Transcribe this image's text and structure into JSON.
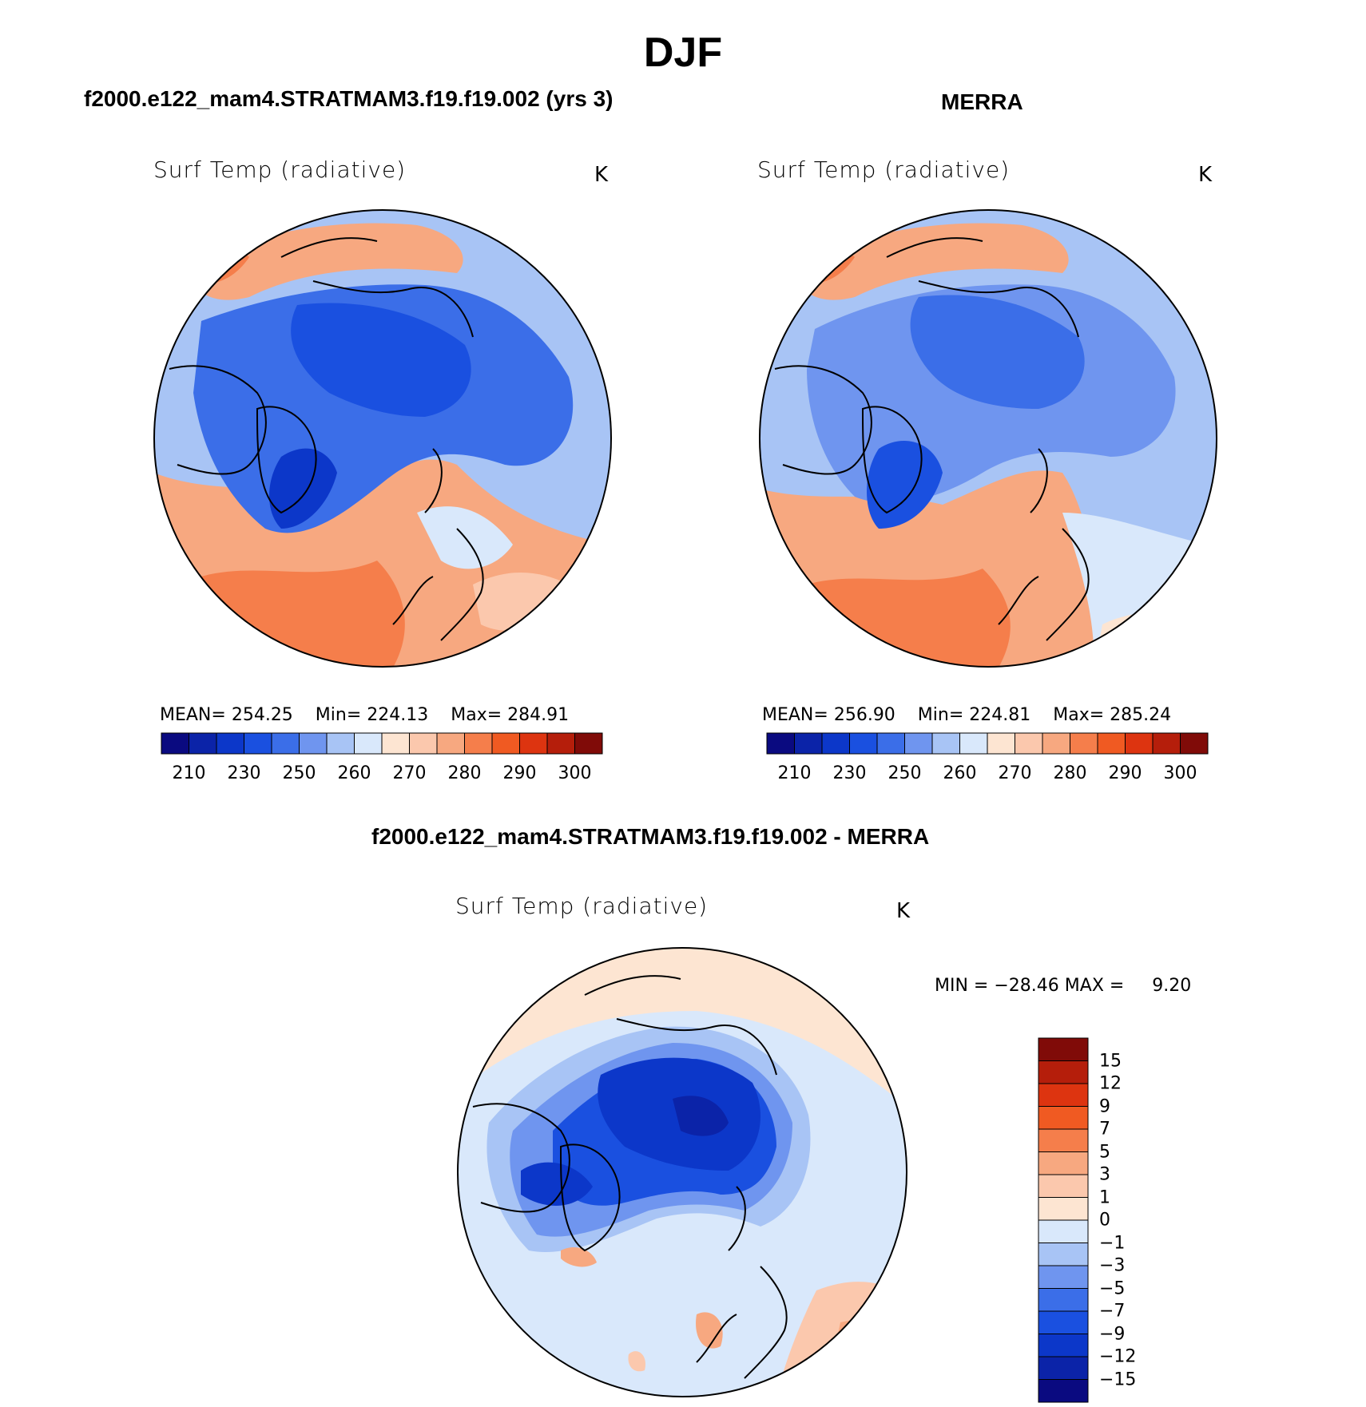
{
  "title": "DJF",
  "panels": [
    {
      "case": "f2000.e122_mam4.STRATMAM3.f19.f19.002 (yrs 3)",
      "variable": "Surf Temp (radiative)",
      "units": "K",
      "stats": {
        "mean_label": "MEAN=",
        "mean": "254.25",
        "min_label": "Min=",
        "min": "224.13",
        "max_label": "Max=",
        "max": "284.91"
      }
    },
    {
      "case": "MERRA",
      "variable": "Surf Temp (radiative)",
      "units": "K",
      "stats": {
        "mean_label": "MEAN=",
        "mean": "256.90",
        "min_label": "Min=",
        "min": "224.81",
        "max_label": "Max=",
        "max": "285.24"
      }
    }
  ],
  "temp_colorbar": {
    "colors": [
      "#0a0a80",
      "#0b23a8",
      "#0c37c9",
      "#1a50e0",
      "#3b6ee8",
      "#6f95ef",
      "#a8c4f5",
      "#d9e8fb",
      "#fde5d2",
      "#fbc8ad",
      "#f7a880",
      "#f57e4b",
      "#f05a22",
      "#dd3410",
      "#b51e0b",
      "#800b08"
    ],
    "labels": [
      "210",
      "230",
      "250",
      "260",
      "270",
      "280",
      "290",
      "300"
    ]
  },
  "diff_panel": {
    "case": "f2000.e122_mam4.STRATMAM3.f19.f19.002 - MERRA",
    "variable": "Surf Temp (radiative)",
    "units": "K",
    "minmax": {
      "min_label": "MIN =",
      "min": "−28.46",
      "max_label": "MAX =",
      "max": "9.20"
    }
  },
  "diff_colorbar": {
    "colors": [
      "#800b08",
      "#b51e0b",
      "#dd3410",
      "#f05a22",
      "#f57e4b",
      "#f7a880",
      "#fbc8ad",
      "#fde5d2",
      "#d9e8fb",
      "#a8c4f5",
      "#6f95ef",
      "#3b6ee8",
      "#1a50e0",
      "#0c37c9",
      "#0b23a8",
      "#0a0a80"
    ],
    "labels": [
      "15",
      "12",
      "9",
      "7",
      "5",
      "3",
      "1",
      "0",
      "−1",
      "−3",
      "−5",
      "−7",
      "−9",
      "−12",
      "−15"
    ]
  }
}
